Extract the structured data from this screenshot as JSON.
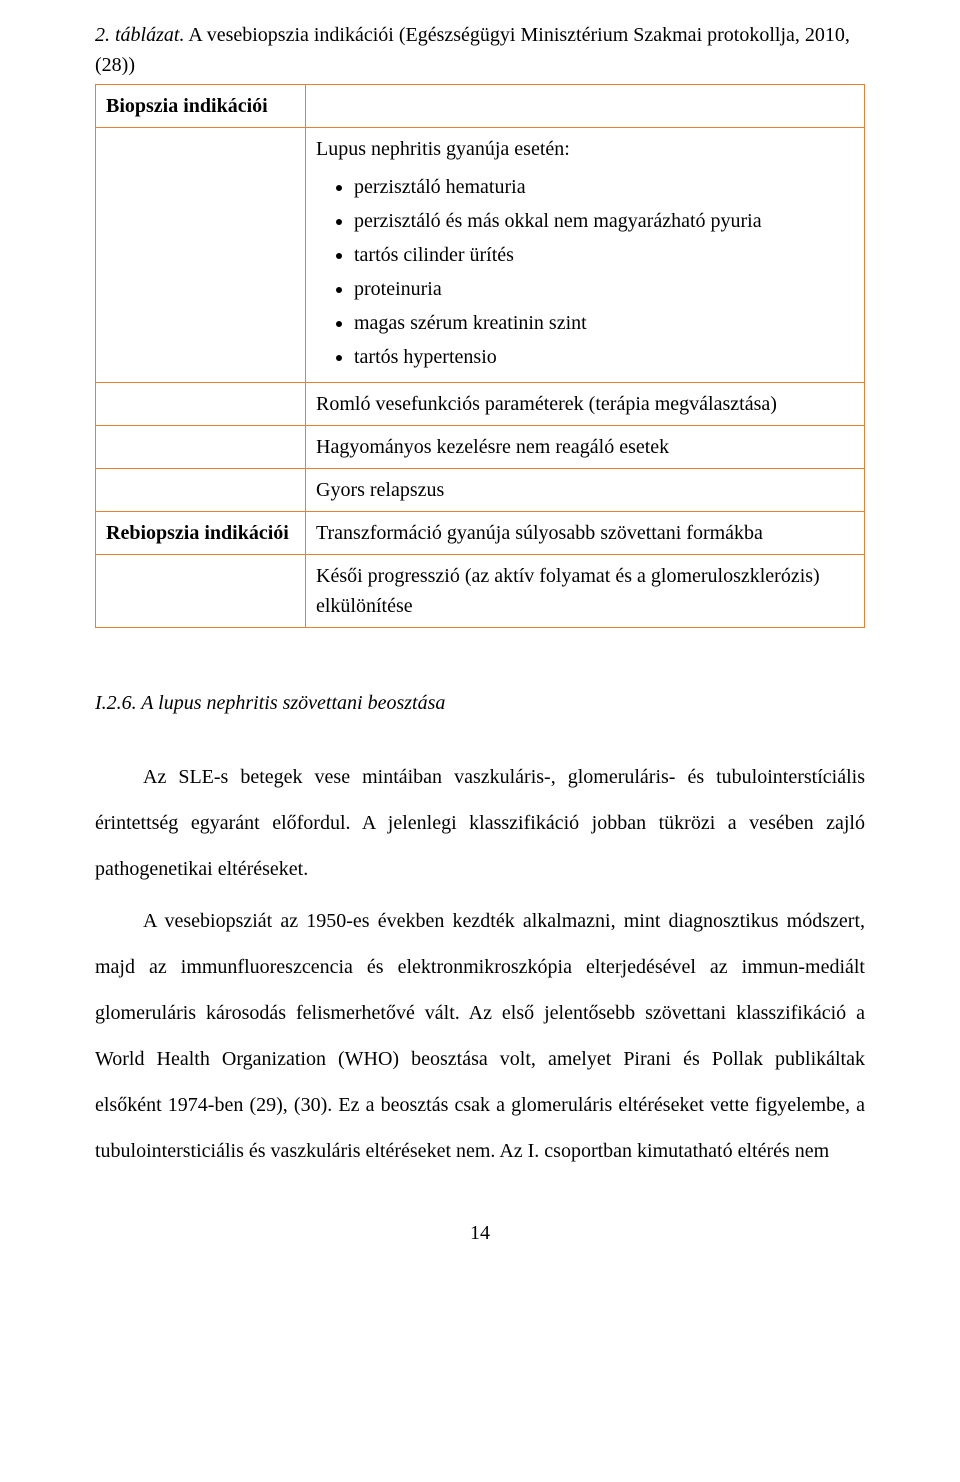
{
  "caption_label": "2. táblázat.",
  "caption_text": " A vesebiopszia indikációi (Egészségügyi Minisztérium Szakmai protokollja, 2010, (28))",
  "table": {
    "header1": "Biopszia indikációi",
    "lead_in": "Lupus nephritis gyanúja esetén:",
    "bullets": [
      "perzisztáló hematuria",
      "perzisztáló és más okkal nem magyarázható pyuria",
      "tartós cilinder ürítés",
      "proteinuria",
      "magas szérum kreatinin szint",
      "tartós hypertensio"
    ],
    "row2": "Romló vesefunkciós paraméterek (terápia megválasztása)",
    "row3": "Hagyományos kezelésre nem reagáló esetek",
    "row4": "Gyors relapszus",
    "header2": "Rebiopszia indikációi",
    "row5": "Transzformáció gyanúja súlyosabb szövettani formákba",
    "row6": "Késői progresszió (az aktív folyamat és a glomeruloszklerózis) elkülönítése"
  },
  "section_heading": "I.2.6. A lupus nephritis szövettani beosztása",
  "para1": "Az SLE-s betegek vese mintáiban vaszkuláris-, glomeruláris- és tubulointerstíciális érintettség egyaránt előfordul. A jelenlegi klasszifikáció jobban tükrözi a vesében zajló pathogenetikai eltéréseket.",
  "para2": "A vesebiopsziát az 1950-es években kezdték alkalmazni, mint diagnosztikus módszert, majd az immunfluoreszcencia és elektronmikroszkópia elterjedésével az immun-mediált glomeruláris  károsodás felismerhetővé vált. Az első jelentősebb szövettani klasszifikáció a World Health Organization (WHO) beosztása volt, amelyet Pirani és Pollak publikáltak elsőként 1974-ben (29), (30). Ez a beosztás csak a glomeruláris eltéréseket vette figyelembe, a tubulointersticiális és vaszkuláris eltéréseket nem. Az I. csoportban kimutatható eltérés nem",
  "page_number": "14"
}
